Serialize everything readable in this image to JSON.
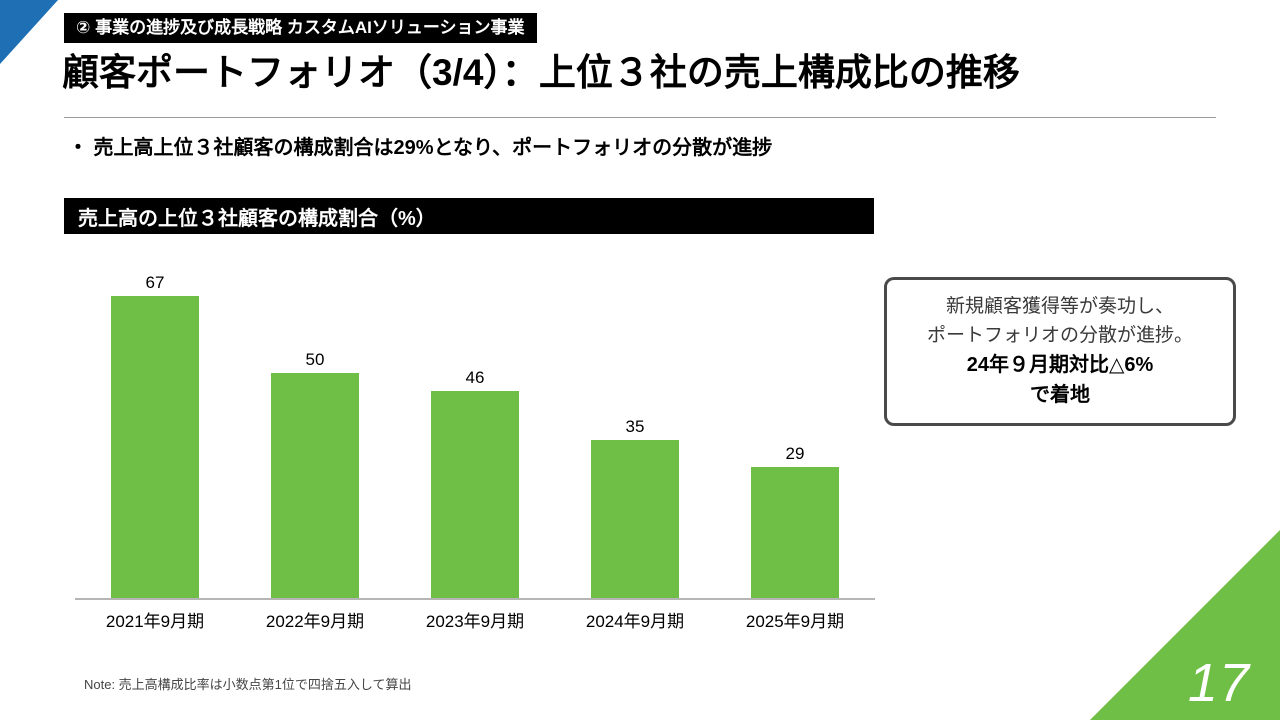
{
  "slide": {
    "badge": "② 事業の進捗及び成長戦略 カスタムAIソリューション事業",
    "title": "顧客ポートフォリオ（3/4）：上位３社の売上構成比の推移",
    "bullet": "・ 売上高上位３社顧客の構成割合は29%となり、ポートフォリオの分散が進捗",
    "chart_header": "売上高の上位３社顧客の構成割合（%）",
    "note": "Note: 売上高構成比率は小数点第1位で四捨五入して算出",
    "page_number": "17"
  },
  "callout": {
    "line1": "新規顧客獲得等が奏功し、",
    "line2": "ポートフォリオの分散が進捗。",
    "line3": "24年９月期対比△6%",
    "line4": "で着地"
  },
  "chart_data": {
    "type": "bar",
    "title": "売上高の上位３社顧客の構成割合（%）",
    "categories": [
      "2021年9月期",
      "2022年9月期",
      "2023年9月期",
      "2024年9月期",
      "2025年9月期"
    ],
    "values": [
      67,
      50,
      46,
      35,
      29
    ],
    "xlabel": "",
    "ylabel": "構成割合（%）",
    "ylim": [
      0,
      70
    ],
    "grid": false,
    "legend": "none",
    "data_labels": true,
    "bar_color": "#6fbe45"
  },
  "colors": {
    "bar_green": "#6fbe45",
    "corner_blue": "#1f6fb5",
    "corner_green": "#6fbe45",
    "header_black": "#000000"
  }
}
